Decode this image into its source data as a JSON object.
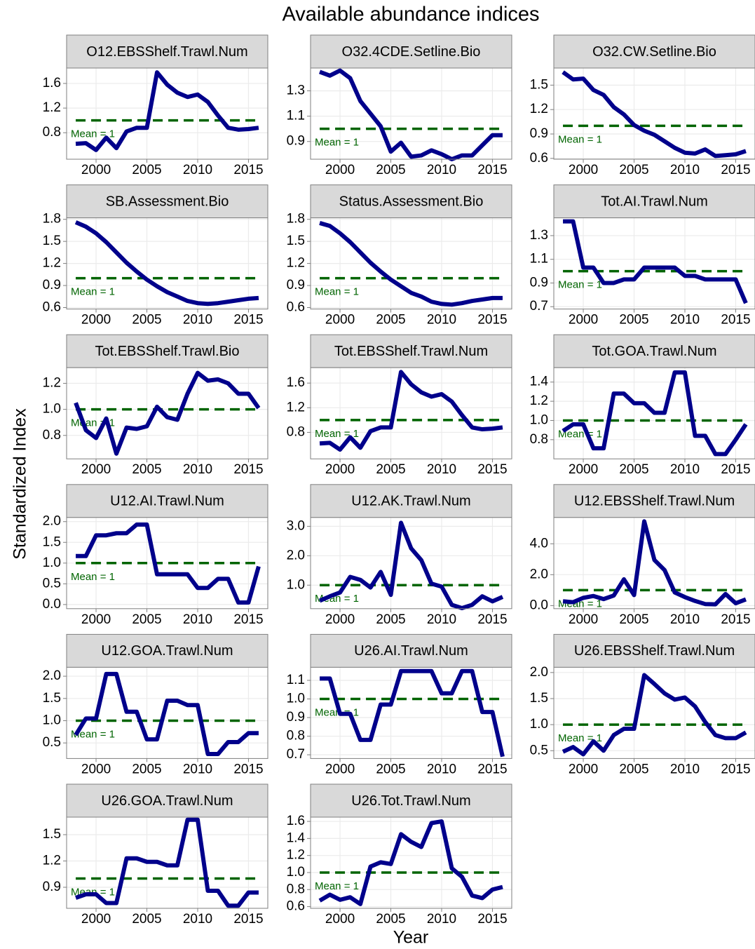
{
  "title": "Available abundance indices",
  "x_label": "Year",
  "y_label": "Standardized Index",
  "mean_label": "Mean = 1",
  "mean_value": 1,
  "chart_data": [
    {
      "type": "line",
      "title": "O12.EBSShelf.Trawl.Num",
      "color": "#00008b",
      "x": [
        1998,
        1999,
        2000,
        2001,
        2002,
        2003,
        2004,
        2005,
        2006,
        2007,
        2008,
        2009,
        2010,
        2011,
        2012,
        2013,
        2014,
        2015,
        2016
      ],
      "values": [
        0.62,
        0.63,
        0.52,
        0.72,
        0.55,
        0.82,
        0.88,
        0.88,
        1.78,
        1.58,
        1.45,
        1.38,
        1.42,
        1.3,
        1.08,
        0.88,
        0.85,
        0.86,
        0.88
      ],
      "xlim": [
        1997.1,
        2016.9
      ],
      "xticks": [
        2000,
        2005,
        2010,
        2015
      ],
      "ylim": [
        0.37,
        1.85
      ],
      "yticks": [
        0.8,
        1.2,
        1.6
      ]
    },
    {
      "type": "line",
      "title": "O32.4CDE.Setline.Bio",
      "color": "#00008b",
      "x": [
        1998,
        1999,
        2000,
        2001,
        2002,
        2003,
        2004,
        2005,
        2006,
        2007,
        2008,
        2009,
        2010,
        2011,
        2012,
        2013,
        2014,
        2015,
        2016
      ],
      "values": [
        1.45,
        1.42,
        1.46,
        1.4,
        1.22,
        1.12,
        1.02,
        0.82,
        0.89,
        0.78,
        0.79,
        0.83,
        0.8,
        0.76,
        0.79,
        0.79,
        0.87,
        0.95,
        0.95
      ],
      "xlim": [
        1997.1,
        2016.9
      ],
      "xticks": [
        2000,
        2005,
        2010,
        2015
      ],
      "ylim": [
        0.76,
        1.48
      ],
      "yticks": [
        0.9,
        1.1,
        1.3
      ]
    },
    {
      "type": "line",
      "title": "O32.CW.Setline.Bio",
      "color": "#00008b",
      "x": [
        1998,
        1999,
        2000,
        2001,
        2002,
        2003,
        2004,
        2005,
        2006,
        2007,
        2008,
        2009,
        2010,
        2011,
        2012,
        2013,
        2014,
        2015,
        2016
      ],
      "values": [
        1.66,
        1.57,
        1.58,
        1.44,
        1.38,
        1.23,
        1.14,
        1.01,
        0.94,
        0.89,
        0.81,
        0.73,
        0.67,
        0.66,
        0.71,
        0.63,
        0.64,
        0.65,
        0.69
      ],
      "xlim": [
        1997.1,
        2016.9
      ],
      "xticks": [
        2000,
        2005,
        2010,
        2015
      ],
      "ylim": [
        0.59,
        1.71
      ],
      "yticks": [
        0.6,
        0.9,
        1.2,
        1.5
      ]
    },
    {
      "type": "line",
      "title": "SB.Assessment.Bio",
      "color": "#00008b",
      "x": [
        1998,
        1999,
        2000,
        2001,
        2002,
        2003,
        2004,
        2005,
        2006,
        2007,
        2008,
        2009,
        2010,
        2011,
        2012,
        2013,
        2014,
        2015,
        2016
      ],
      "values": [
        1.76,
        1.7,
        1.61,
        1.49,
        1.35,
        1.21,
        1.09,
        0.98,
        0.89,
        0.81,
        0.75,
        0.69,
        0.66,
        0.65,
        0.66,
        0.68,
        0.7,
        0.72,
        0.73
      ],
      "xlim": [
        1997.1,
        2016.9
      ],
      "xticks": [
        2000,
        2005,
        2010,
        2015
      ],
      "ylim": [
        0.58,
        1.82
      ],
      "yticks": [
        0.6,
        0.9,
        1.2,
        1.5,
        1.8
      ]
    },
    {
      "type": "line",
      "title": "Status.Assessment.Bio",
      "color": "#00008b",
      "x": [
        1998,
        1999,
        2000,
        2001,
        2002,
        2003,
        2004,
        2005,
        2006,
        2007,
        2008,
        2009,
        2010,
        2011,
        2012,
        2013,
        2014,
        2015,
        2016
      ],
      "values": [
        1.75,
        1.71,
        1.61,
        1.49,
        1.35,
        1.21,
        1.09,
        0.98,
        0.89,
        0.8,
        0.75,
        0.68,
        0.65,
        0.64,
        0.66,
        0.69,
        0.71,
        0.73,
        0.73
      ],
      "xlim": [
        1997.1,
        2016.9
      ],
      "xticks": [
        2000,
        2005,
        2010,
        2015
      ],
      "ylim": [
        0.58,
        1.82
      ],
      "yticks": [
        0.6,
        0.9,
        1.2,
        1.5,
        1.8
      ]
    },
    {
      "type": "line",
      "title": "Tot.AI.Trawl.Num",
      "color": "#00008b",
      "x": [
        1998,
        1999,
        2000,
        2001,
        2002,
        2003,
        2004,
        2005,
        2006,
        2007,
        2008,
        2009,
        2010,
        2011,
        2012,
        2013,
        2014,
        2015,
        2016
      ],
      "values": [
        1.42,
        1.42,
        1.03,
        1.03,
        0.9,
        0.9,
        0.93,
        0.93,
        1.03,
        1.03,
        1.03,
        1.03,
        0.96,
        0.96,
        0.93,
        0.93,
        0.93,
        0.93,
        0.73
      ],
      "xlim": [
        1997.1,
        2016.9
      ],
      "xticks": [
        2000,
        2005,
        2010,
        2015
      ],
      "ylim": [
        0.68,
        1.45
      ],
      "yticks": [
        0.7,
        0.9,
        1.1,
        1.3
      ]
    },
    {
      "type": "line",
      "title": "Tot.EBSShelf.Trawl.Bio",
      "color": "#00008b",
      "x": [
        1998,
        1999,
        2000,
        2001,
        2002,
        2003,
        2004,
        2005,
        2006,
        2007,
        2008,
        2009,
        2010,
        2011,
        2012,
        2013,
        2014,
        2015,
        2016
      ],
      "values": [
        1.05,
        0.84,
        0.78,
        0.93,
        0.66,
        0.86,
        0.85,
        0.87,
        1.02,
        0.94,
        0.92,
        1.12,
        1.28,
        1.22,
        1.23,
        1.2,
        1.12,
        1.12,
        1.01
      ],
      "xlim": [
        1997.1,
        2016.9
      ],
      "xticks": [
        2000,
        2005,
        2010,
        2015
      ],
      "ylim": [
        0.62,
        1.32
      ],
      "yticks": [
        0.8,
        {
          "value": 1,
          "label": "1.0"
        },
        1.2
      ]
    },
    {
      "type": "line",
      "title": "Tot.EBSShelf.Trawl.Num",
      "color": "#00008b",
      "x": [
        1998,
        1999,
        2000,
        2001,
        2002,
        2003,
        2004,
        2005,
        2006,
        2007,
        2008,
        2009,
        2010,
        2011,
        2012,
        2013,
        2014,
        2015,
        2016
      ],
      "values": [
        0.62,
        0.63,
        0.52,
        0.72,
        0.55,
        0.82,
        0.88,
        0.88,
        1.78,
        1.58,
        1.45,
        1.38,
        1.42,
        1.3,
        1.08,
        0.88,
        0.85,
        0.86,
        0.88
      ],
      "xlim": [
        1997.1,
        2016.9
      ],
      "xticks": [
        2000,
        2005,
        2010,
        2015
      ],
      "ylim": [
        0.37,
        1.85
      ],
      "yticks": [
        0.8,
        1.2,
        1.6
      ]
    },
    {
      "type": "line",
      "title": "Tot.GOA.Trawl.Num",
      "color": "#00008b",
      "x": [
        1998,
        1999,
        2000,
        2001,
        2002,
        2003,
        2004,
        2005,
        2006,
        2007,
        2008,
        2009,
        2010,
        2011,
        2012,
        2013,
        2014,
        2015,
        2016
      ],
      "values": [
        0.89,
        0.96,
        0.96,
        0.71,
        0.71,
        1.28,
        1.28,
        1.18,
        1.18,
        1.08,
        1.08,
        1.5,
        1.5,
        0.84,
        0.84,
        0.65,
        0.65,
        0.8,
        0.96
      ],
      "xlim": [
        1997.1,
        2016.9
      ],
      "xticks": [
        2000,
        2005,
        2010,
        2015
      ],
      "ylim": [
        0.6,
        1.55
      ],
      "yticks": [
        0.8,
        {
          "value": 1,
          "label": "1.0"
        },
        1.2,
        1.4
      ]
    },
    {
      "type": "line",
      "title": "U12.AI.Trawl.Num",
      "color": "#00008b",
      "x": [
        1998,
        1999,
        2000,
        2001,
        2002,
        2003,
        2004,
        2005,
        2006,
        2007,
        2008,
        2009,
        2010,
        2011,
        2012,
        2013,
        2014,
        2015,
        2016
      ],
      "values": [
        1.17,
        1.17,
        1.67,
        1.67,
        1.72,
        1.72,
        1.93,
        1.93,
        0.73,
        0.73,
        0.73,
        0.73,
        0.4,
        0.4,
        0.62,
        0.62,
        0.05,
        0.05,
        0.92
      ],
      "xlim": [
        1997.1,
        2016.9
      ],
      "xticks": [
        2000,
        2005,
        2010,
        2015
      ],
      "ylim": [
        -0.1,
        2.1
      ],
      "yticks": [
        {
          "value": 0,
          "label": "0.0"
        },
        0.5,
        {
          "value": 1,
          "label": "1.0"
        },
        1.5,
        {
          "value": 2,
          "label": "2.0"
        }
      ]
    },
    {
      "type": "line",
      "title": "U12.AK.Trawl.Num",
      "color": "#00008b",
      "x": [
        1998,
        1999,
        2000,
        2001,
        2002,
        2003,
        2004,
        2005,
        2006,
        2007,
        2008,
        2009,
        2010,
        2011,
        2012,
        2013,
        2014,
        2015,
        2016
      ],
      "values": [
        0.47,
        0.62,
        0.75,
        1.28,
        1.18,
        0.92,
        1.45,
        0.67,
        3.12,
        2.25,
        1.85,
        1.05,
        0.95,
        0.33,
        0.22,
        0.33,
        0.62,
        0.45,
        0.6
      ],
      "xlim": [
        1997.1,
        2016.9
      ],
      "xticks": [
        2000,
        2005,
        2010,
        2015
      ],
      "ylim": [
        0.2,
        3.3
      ],
      "yticks": [
        {
          "value": 1,
          "label": "1.0"
        },
        {
          "value": 2,
          "label": "2.0"
        },
        {
          "value": 3,
          "label": "3.0"
        }
      ]
    },
    {
      "type": "line",
      "title": "U12.EBSShelf.Trawl.Num",
      "color": "#00008b",
      "x": [
        1998,
        1999,
        2000,
        2001,
        2002,
        2003,
        2004,
        2005,
        2006,
        2007,
        2008,
        2009,
        2010,
        2011,
        2012,
        2013,
        2014,
        2015,
        2016
      ],
      "values": [
        0.28,
        0.22,
        0.5,
        0.62,
        0.42,
        0.65,
        1.7,
        0.68,
        5.45,
        2.95,
        2.3,
        0.85,
        0.55,
        0.3,
        0.1,
        0.08,
        0.75,
        0.15,
        0.4
      ],
      "xlim": [
        1997.1,
        2016.9
      ],
      "xticks": [
        2000,
        2005,
        2010,
        2015
      ],
      "ylim": [
        -0.2,
        5.7
      ],
      "yticks": [
        {
          "value": 0,
          "label": "0.0"
        },
        {
          "value": 2,
          "label": "2.0"
        },
        {
          "value": 4,
          "label": "4.0"
        }
      ]
    },
    {
      "type": "line",
      "title": "U12.GOA.Trawl.Num",
      "color": "#00008b",
      "x": [
        1998,
        1999,
        2000,
        2001,
        2002,
        2003,
        2004,
        2005,
        2006,
        2007,
        2008,
        2009,
        2010,
        2011,
        2012,
        2013,
        2014,
        2015,
        2016
      ],
      "values": [
        0.68,
        1.05,
        1.05,
        2.05,
        2.05,
        1.2,
        1.2,
        0.58,
        0.58,
        1.45,
        1.45,
        1.35,
        1.35,
        0.25,
        0.25,
        0.52,
        0.52,
        0.72,
        0.72
      ],
      "xlim": [
        1997.1,
        2016.9
      ],
      "xticks": [
        2000,
        2005,
        2010,
        2015
      ],
      "ylim": [
        0.15,
        2.2
      ],
      "yticks": [
        0.5,
        {
          "value": 1,
          "label": "1.0"
        },
        1.5,
        {
          "value": 2,
          "label": "2.0"
        }
      ]
    },
    {
      "type": "line",
      "title": "U26.AI.Trawl.Num",
      "color": "#00008b",
      "x": [
        1998,
        1999,
        2000,
        2001,
        2002,
        2003,
        2004,
        2005,
        2006,
        2007,
        2008,
        2009,
        2010,
        2011,
        2012,
        2013,
        2014,
        2015,
        2016
      ],
      "values": [
        1.11,
        1.11,
        0.92,
        0.92,
        0.78,
        0.78,
        0.97,
        0.97,
        1.15,
        1.15,
        1.15,
        1.15,
        1.03,
        1.03,
        1.15,
        1.15,
        0.93,
        0.93,
        0.69
      ],
      "xlim": [
        1997.1,
        2016.9
      ],
      "xticks": [
        2000,
        2005,
        2010,
        2015
      ],
      "ylim": [
        0.68,
        1.17
      ],
      "yticks": [
        0.7,
        0.8,
        0.9,
        {
          "value": 1,
          "label": "1.0"
        },
        1.1
      ]
    },
    {
      "type": "line",
      "title": "U26.EBSShelf.Trawl.Num",
      "color": "#00008b",
      "x": [
        1998,
        1999,
        2000,
        2001,
        2002,
        2003,
        2004,
        2005,
        2006,
        2007,
        2008,
        2009,
        2010,
        2011,
        2012,
        2013,
        2014,
        2015,
        2016
      ],
      "values": [
        0.48,
        0.57,
        0.43,
        0.68,
        0.5,
        0.8,
        0.92,
        0.92,
        1.95,
        1.78,
        1.6,
        1.48,
        1.52,
        1.35,
        1.05,
        0.8,
        0.74,
        0.74,
        0.85
      ],
      "xlim": [
        1997.1,
        2016.9
      ],
      "xticks": [
        2000,
        2005,
        2010,
        2015
      ],
      "ylim": [
        0.35,
        2.1
      ],
      "yticks": [
        0.5,
        {
          "value": 1,
          "label": "1.0"
        },
        1.5,
        {
          "value": 2,
          "label": "2.0"
        }
      ]
    },
    {
      "type": "line",
      "title": "U26.GOA.Trawl.Num",
      "color": "#00008b",
      "x": [
        1998,
        1999,
        2000,
        2001,
        2002,
        2003,
        2004,
        2005,
        2006,
        2007,
        2008,
        2009,
        2010,
        2011,
        2012,
        2013,
        2014,
        2015,
        2016
      ],
      "values": [
        0.78,
        0.82,
        0.82,
        0.72,
        0.72,
        1.23,
        1.23,
        1.19,
        1.19,
        1.15,
        1.15,
        1.67,
        1.67,
        0.86,
        0.86,
        0.69,
        0.69,
        0.84,
        0.84
      ],
      "xlim": [
        1997.1,
        2016.9
      ],
      "xticks": [
        2000,
        2005,
        2010,
        2015
      ],
      "ylim": [
        0.66,
        1.7
      ],
      "yticks": [
        0.9,
        1.2,
        1.5
      ]
    },
    {
      "type": "line",
      "title": "U26.Tot.Trawl.Num",
      "color": "#00008b",
      "x": [
        1998,
        1999,
        2000,
        2001,
        2002,
        2003,
        2004,
        2005,
        2006,
        2007,
        2008,
        2009,
        2010,
        2011,
        2012,
        2013,
        2014,
        2015,
        2016
      ],
      "values": [
        0.67,
        0.74,
        0.68,
        0.71,
        0.63,
        1.07,
        1.12,
        1.1,
        1.45,
        1.36,
        1.3,
        1.58,
        1.6,
        1.05,
        0.95,
        0.73,
        0.7,
        0.8,
        0.83
      ],
      "xlim": [
        1997.1,
        2016.9
      ],
      "xticks": [
        2000,
        2005,
        2010,
        2015
      ],
      "ylim": [
        0.58,
        1.65
      ],
      "yticks": [
        0.6,
        0.8,
        {
          "value": 1,
          "label": "1.0"
        },
        1.2,
        1.4,
        1.6
      ]
    }
  ]
}
